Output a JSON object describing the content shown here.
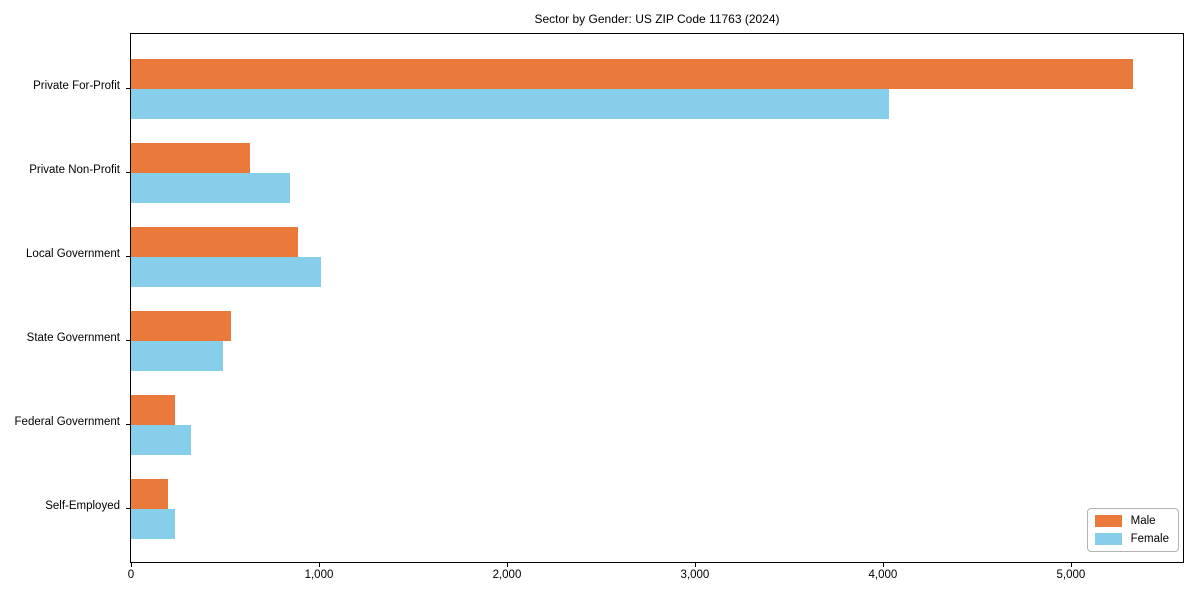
{
  "chart_data": {
    "type": "bar",
    "orientation": "horizontal",
    "title": "Sector by Gender: US ZIP Code 11763 (2024)",
    "categories": [
      "Private For-Profit",
      "Private Non-Profit",
      "Local Government",
      "State Government",
      "Federal Government",
      "Self-Employed"
    ],
    "series": [
      {
        "name": "Male",
        "color": "#ea7a3b",
        "values": [
          5330,
          635,
          890,
          530,
          235,
          195
        ]
      },
      {
        "name": "Female",
        "color": "#87ceeb",
        "values": [
          4030,
          845,
          1010,
          490,
          320,
          235
        ]
      }
    ],
    "xlabel": "",
    "ylabel": "",
    "xlim": [
      0,
      5591
    ],
    "xticks": [
      0,
      1000,
      2000,
      3000,
      4000,
      5000
    ],
    "xtick_labels": [
      "0",
      "1,000",
      "2,000",
      "3,000",
      "4,000",
      "5,000"
    ],
    "grid": false,
    "legend_position": "lower right",
    "spine_color": "#000000",
    "background_color": "#ffffff"
  }
}
